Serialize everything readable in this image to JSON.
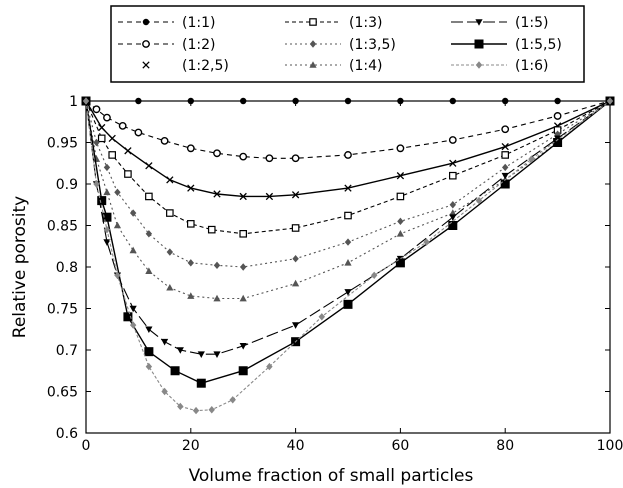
{
  "chart_data": {
    "type": "line",
    "title": "",
    "xlabel": "Volume fraction of small particles",
    "ylabel": "Relative porosity",
    "xlim": [
      0,
      100
    ],
    "ylim": [
      0.6,
      1.0
    ],
    "xticks": [
      "0",
      "20",
      "40",
      "60",
      "80",
      "100"
    ],
    "yticks": [
      "0.6",
      "0.65",
      "0.7",
      "0.75",
      "0.8",
      "0.85",
      "0.9",
      "0.95",
      "1"
    ],
    "grid": false,
    "legend_position": "top",
    "series": [
      {
        "name": "(1:1)",
        "color": "#000000",
        "dash": "5,4",
        "marker": "filled-circle",
        "points": [
          [
            0,
            1
          ],
          [
            10,
            1
          ],
          [
            20,
            1
          ],
          [
            30,
            1
          ],
          [
            40,
            1
          ],
          [
            50,
            1
          ],
          [
            60,
            1
          ],
          [
            70,
            1
          ],
          [
            80,
            1
          ],
          [
            90,
            1
          ],
          [
            100,
            1
          ]
        ]
      },
      {
        "name": "(1:2)",
        "color": "#000000",
        "dash": "5,4",
        "marker": "half-circle",
        "points": [
          [
            0,
            1
          ],
          [
            2,
            0.99
          ],
          [
            4,
            0.98
          ],
          [
            7,
            0.97
          ],
          [
            10,
            0.962
          ],
          [
            15,
            0.952
          ],
          [
            20,
            0.943
          ],
          [
            25,
            0.937
          ],
          [
            30,
            0.933
          ],
          [
            35,
            0.931
          ],
          [
            40,
            0.931
          ],
          [
            50,
            0.935
          ],
          [
            60,
            0.943
          ],
          [
            70,
            0.953
          ],
          [
            80,
            0.966
          ],
          [
            90,
            0.982
          ],
          [
            100,
            1
          ]
        ]
      },
      {
        "name": "(1:2,5)",
        "color": "#000000",
        "dash": "none",
        "marker": "x",
        "points": [
          [
            0,
            1
          ],
          [
            3,
            0.968
          ],
          [
            5,
            0.955
          ],
          [
            8,
            0.94
          ],
          [
            12,
            0.922
          ],
          [
            16,
            0.905
          ],
          [
            20,
            0.895
          ],
          [
            25,
            0.888
          ],
          [
            30,
            0.885
          ],
          [
            35,
            0.885
          ],
          [
            40,
            0.887
          ],
          [
            50,
            0.895
          ],
          [
            60,
            0.91
          ],
          [
            70,
            0.925
          ],
          [
            80,
            0.945
          ],
          [
            90,
            0.97
          ],
          [
            100,
            1
          ]
        ]
      },
      {
        "name": "(1:3)",
        "color": "#000000",
        "dash": "4,3",
        "marker": "open-square",
        "points": [
          [
            0,
            1
          ],
          [
            3,
            0.955
          ],
          [
            5,
            0.935
          ],
          [
            8,
            0.912
          ],
          [
            12,
            0.885
          ],
          [
            16,
            0.865
          ],
          [
            20,
            0.852
          ],
          [
            24,
            0.845
          ],
          [
            30,
            0.84
          ],
          [
            40,
            0.847
          ],
          [
            50,
            0.862
          ],
          [
            60,
            0.885
          ],
          [
            70,
            0.91
          ],
          [
            80,
            0.935
          ],
          [
            90,
            0.965
          ],
          [
            100,
            1
          ]
        ]
      },
      {
        "name": "(1:3,5)",
        "color": "#555555",
        "dash": "2,3",
        "marker": "diamond",
        "points": [
          [
            0,
            1
          ],
          [
            2,
            0.95
          ],
          [
            4,
            0.92
          ],
          [
            6,
            0.89
          ],
          [
            9,
            0.865
          ],
          [
            12,
            0.84
          ],
          [
            16,
            0.818
          ],
          [
            20,
            0.805
          ],
          [
            25,
            0.802
          ],
          [
            30,
            0.8
          ],
          [
            40,
            0.81
          ],
          [
            50,
            0.83
          ],
          [
            60,
            0.855
          ],
          [
            70,
            0.875
          ],
          [
            80,
            0.92
          ],
          [
            90,
            0.96
          ],
          [
            100,
            1
          ]
        ]
      },
      {
        "name": "(1:4)",
        "color": "#555555",
        "dash": "2,3",
        "marker": "triangle",
        "points": [
          [
            0,
            1
          ],
          [
            2,
            0.93
          ],
          [
            4,
            0.89
          ],
          [
            6,
            0.85
          ],
          [
            9,
            0.82
          ],
          [
            12,
            0.795
          ],
          [
            16,
            0.775
          ],
          [
            20,
            0.765
          ],
          [
            25,
            0.762
          ],
          [
            30,
            0.762
          ],
          [
            40,
            0.78
          ],
          [
            50,
            0.805
          ],
          [
            60,
            0.84
          ],
          [
            70,
            0.865
          ],
          [
            80,
            0.905
          ],
          [
            90,
            0.95
          ],
          [
            100,
            1
          ]
        ]
      },
      {
        "name": "(1:5)",
        "color": "#000000",
        "dash": "12,4",
        "marker": "down-triangle",
        "points": [
          [
            0,
            1
          ],
          [
            2,
            0.9
          ],
          [
            4,
            0.83
          ],
          [
            6,
            0.79
          ],
          [
            9,
            0.75
          ],
          [
            12,
            0.725
          ],
          [
            15,
            0.71
          ],
          [
            18,
            0.7
          ],
          [
            22,
            0.695
          ],
          [
            25,
            0.695
          ],
          [
            30,
            0.705
          ],
          [
            40,
            0.73
          ],
          [
            50,
            0.77
          ],
          [
            60,
            0.81
          ],
          [
            70,
            0.86
          ],
          [
            80,
            0.91
          ],
          [
            90,
            0.955
          ],
          [
            100,
            1
          ]
        ]
      },
      {
        "name": "(1:5,5)",
        "color": "#000000",
        "dash": "none",
        "marker": "filled-square",
        "points": [
          [
            0,
            1
          ],
          [
            3,
            0.88
          ],
          [
            4,
            0.86
          ],
          [
            8,
            0.74
          ],
          [
            12,
            0.698
          ],
          [
            17,
            0.675
          ],
          [
            22,
            0.66
          ],
          [
            30,
            0.675
          ],
          [
            40,
            0.71
          ],
          [
            50,
            0.755
          ],
          [
            60,
            0.805
          ],
          [
            70,
            0.85
          ],
          [
            80,
            0.9
          ],
          [
            90,
            0.95
          ],
          [
            100,
            1
          ]
        ]
      },
      {
        "name": "(1:6)",
        "color": "#888888",
        "dash": "3,2",
        "marker": "diamond",
        "points": [
          [
            0,
            1
          ],
          [
            2,
            0.9
          ],
          [
            4,
            0.845
          ],
          [
            6,
            0.79
          ],
          [
            9,
            0.73
          ],
          [
            12,
            0.68
          ],
          [
            15,
            0.65
          ],
          [
            18,
            0.632
          ],
          [
            21,
            0.627
          ],
          [
            24,
            0.628
          ],
          [
            28,
            0.64
          ],
          [
            35,
            0.68
          ],
          [
            45,
            0.74
          ],
          [
            55,
            0.79
          ],
          [
            65,
            0.83
          ],
          [
            75,
            0.88
          ],
          [
            85,
            0.93
          ],
          [
            100,
            1
          ]
        ]
      }
    ]
  }
}
